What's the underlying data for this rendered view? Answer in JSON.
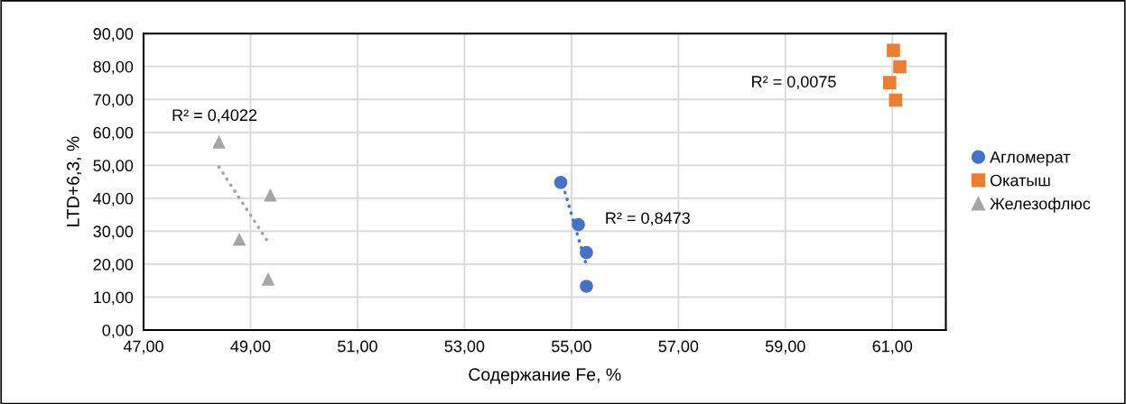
{
  "chart_data": {
    "type": "scatter",
    "xlabel": "Содержание Fe, %",
    "ylabel": "LTD+6,3, %",
    "xlim": [
      47,
      62
    ],
    "xticks": [
      {
        "value": 47,
        "label": "47,00"
      },
      {
        "value": 49,
        "label": "49,00"
      },
      {
        "value": 51,
        "label": "51,00"
      },
      {
        "value": 53,
        "label": "53,00"
      },
      {
        "value": 55,
        "label": "55,00"
      },
      {
        "value": 57,
        "label": "57,00"
      },
      {
        "value": 59,
        "label": "59,00"
      },
      {
        "value": 61,
        "label": "61,00"
      }
    ],
    "ylim": [
      0,
      90
    ],
    "yticks": [
      {
        "value": 0,
        "label": "0,00"
      },
      {
        "value": 10,
        "label": "10,00"
      },
      {
        "value": 20,
        "label": "20,00"
      },
      {
        "value": 30,
        "label": "30,00"
      },
      {
        "value": 40,
        "label": "40,00"
      },
      {
        "value": 50,
        "label": "50,00"
      },
      {
        "value": 60,
        "label": "60,00"
      },
      {
        "value": 70,
        "label": "70,00"
      },
      {
        "value": 80,
        "label": "80,00"
      },
      {
        "value": 90,
        "label": "90,00"
      }
    ],
    "grid": true,
    "legend": "right",
    "series": [
      {
        "name": "Агломерат",
        "color": "#4472c4",
        "marker": "circle",
        "x": [
          54.8,
          55.13,
          55.28,
          55.28
        ],
        "values": [
          44.8,
          32.0,
          23.5,
          13.3
        ]
      },
      {
        "name": "Окатыш",
        "color": "#ed7d31",
        "marker": "square",
        "x": [
          61.02,
          61.14,
          60.95,
          61.06
        ],
        "values": [
          84.9,
          79.9,
          75.1,
          69.8
        ]
      },
      {
        "name": "Железофлюс",
        "color": "#a5a5a5",
        "marker": "triangle",
        "x": [
          48.41,
          49.37,
          48.79,
          49.33
        ],
        "values": [
          57.1,
          41.0,
          27.6,
          15.5
        ]
      },
      {
        "type": "line",
        "color": "#4472c4",
        "line_style": "dotted",
        "x": [
          54.88,
          55.28
        ],
        "values": [
          41.8,
          19.6
        ]
      },
      {
        "type": "line",
        "color": "#a5a5a5",
        "line_style": "dotted",
        "x": [
          48.41,
          49.33
        ],
        "values": [
          49.5,
          26.7
        ]
      }
    ],
    "annotations": [
      "R² = 0,4022",
      "R² = 0,8473",
      "R² = 0,0075"
    ]
  }
}
